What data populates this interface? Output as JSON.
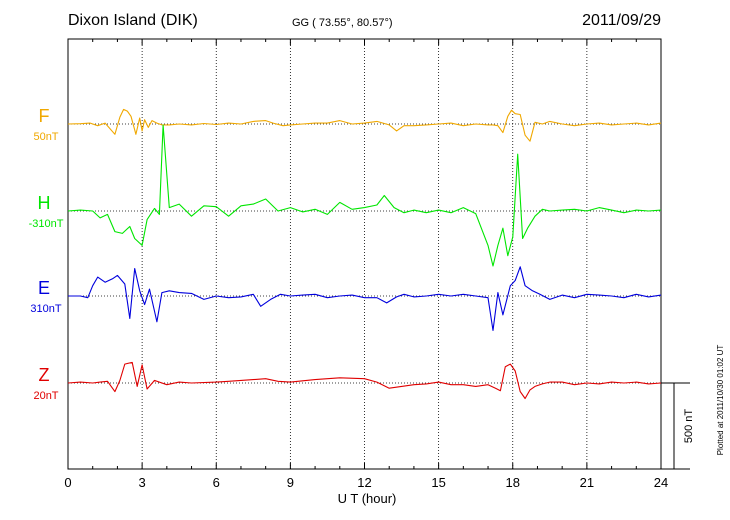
{
  "header": {
    "station": "Dixon Island (DIK)",
    "coords": "GG ( 73.55°,  80.57°)",
    "date": "2011/09/29"
  },
  "footer": {
    "plotted": "Plotted at 2011/10/30 01:02 UT"
  },
  "chart_data": {
    "type": "line",
    "title": "Dixon Island (DIK)",
    "xlabel": "U T (hour)",
    "xlim": [
      0,
      24
    ],
    "xticks": [
      "0",
      "3",
      "6",
      "9",
      "12",
      "15",
      "18",
      "21",
      "24"
    ],
    "grid": true,
    "scale_bar": {
      "label": "500 nT",
      "value_nT": 500
    },
    "series": [
      {
        "name": "F",
        "baseline_label": "50nT",
        "baseline_nT": 50,
        "color": "#f0a800",
        "x": [
          0,
          0.5,
          0.9,
          1.2,
          1.5,
          1.9,
          2.1,
          2.25,
          2.4,
          2.55,
          2.75,
          2.9,
          3.0,
          3.1,
          3.25,
          3.4,
          3.6,
          3.8,
          4.1,
          4.5,
          5.0,
          5.5,
          6.0,
          6.5,
          7.0,
          7.5,
          8.0,
          8.3,
          8.7,
          9.0,
          9.5,
          10.0,
          10.5,
          11.0,
          11.5,
          12.0,
          12.5,
          13.0,
          13.3,
          13.6,
          14.0,
          14.5,
          15.0,
          15.5,
          16.0,
          16.5,
          17.0,
          17.2,
          17.4,
          17.6,
          17.8,
          17.95,
          18.1,
          18.3,
          18.5,
          18.7,
          18.9,
          19.2,
          19.5,
          20.0,
          20.5,
          21.0,
          21.5,
          22.0,
          22.5,
          23.0,
          23.5,
          24.0
        ],
        "y": [
          0,
          2,
          5,
          -10,
          5,
          -60,
          40,
          85,
          75,
          45,
          -60,
          35,
          -40,
          25,
          -20,
          20,
          5,
          -5,
          -5,
          0,
          -5,
          3,
          -3,
          5,
          0,
          15,
          20,
          5,
          -10,
          -5,
          0,
          5,
          5,
          20,
          0,
          5,
          15,
          -5,
          -40,
          -10,
          -10,
          -5,
          0,
          5,
          -10,
          0,
          -5,
          -5,
          -10,
          -50,
          45,
          80,
          60,
          55,
          -65,
          -100,
          10,
          0,
          15,
          0,
          -10,
          0,
          5,
          -5,
          0,
          5,
          -5,
          5
        ]
      },
      {
        "name": "H",
        "baseline_label": "-310nT",
        "baseline_nT": -310,
        "color": "#00e600",
        "x": [
          0,
          0.5,
          1.0,
          1.3,
          1.6,
          1.9,
          2.2,
          2.5,
          2.7,
          3.0,
          3.2,
          3.5,
          3.7,
          3.85,
          4.1,
          4.5,
          5.0,
          5.5,
          6.0,
          6.5,
          7.0,
          7.5,
          8.0,
          8.5,
          9.0,
          9.5,
          10.0,
          10.5,
          11.0,
          11.5,
          12.0,
          12.5,
          12.8,
          13.2,
          13.6,
          14.0,
          14.5,
          15.0,
          15.5,
          16.0,
          16.5,
          17.0,
          17.2,
          17.4,
          17.6,
          17.8,
          18.0,
          18.2,
          18.4,
          18.6,
          18.9,
          19.2,
          19.5,
          20.0,
          20.5,
          21.0,
          21.5,
          22.0,
          22.5,
          23.0,
          23.5,
          24.0
        ],
        "y": [
          0,
          5,
          0,
          -40,
          -20,
          -120,
          -130,
          -90,
          -160,
          -200,
          -50,
          15,
          -20,
          500,
          20,
          40,
          -30,
          30,
          25,
          -30,
          30,
          40,
          70,
          0,
          20,
          -5,
          10,
          -20,
          50,
          10,
          20,
          35,
          90,
          20,
          -10,
          5,
          -10,
          5,
          -10,
          20,
          -15,
          -200,
          -320,
          -200,
          -100,
          -260,
          -150,
          330,
          -160,
          -100,
          -30,
          10,
          0,
          5,
          10,
          0,
          20,
          5,
          -10,
          5,
          0,
          5
        ]
      },
      {
        "name": "E",
        "baseline_label": "310nT",
        "baseline_nT": 310,
        "color": "#0000dd",
        "x": [
          0,
          0.5,
          0.8,
          1.0,
          1.2,
          1.5,
          1.8,
          2.0,
          2.3,
          2.5,
          2.7,
          2.9,
          3.1,
          3.3,
          3.6,
          3.8,
          4.1,
          4.5,
          5.0,
          5.5,
          6.0,
          6.5,
          7.0,
          7.5,
          7.8,
          8.2,
          8.6,
          9.0,
          9.5,
          10.0,
          10.5,
          11.0,
          11.5,
          12.0,
          12.5,
          12.9,
          13.3,
          13.6,
          14.0,
          14.5,
          15.0,
          15.5,
          16.0,
          16.5,
          17.0,
          17.2,
          17.4,
          17.6,
          17.9,
          18.1,
          18.3,
          18.5,
          18.8,
          19.1,
          19.5,
          20.0,
          20.5,
          21.0,
          21.5,
          22.0,
          22.5,
          23.0,
          23.5,
          24.0
        ],
        "y": [
          0,
          0,
          -10,
          60,
          110,
          80,
          100,
          120,
          70,
          -130,
          160,
          30,
          -50,
          40,
          -150,
          20,
          30,
          20,
          15,
          -20,
          0,
          -10,
          -5,
          10,
          -60,
          -20,
          10,
          0,
          5,
          10,
          -10,
          0,
          5,
          -10,
          -10,
          -40,
          -5,
          10,
          -5,
          0,
          10,
          0,
          10,
          0,
          -10,
          -200,
          20,
          -110,
          60,
          90,
          170,
          60,
          30,
          10,
          -20,
          5,
          -10,
          10,
          5,
          0,
          -10,
          10,
          -5,
          5
        ]
      },
      {
        "name": "Z",
        "baseline_label": "20nT",
        "baseline_nT": 20,
        "color": "#e00000",
        "x": [
          0,
          0.5,
          1.0,
          1.3,
          1.6,
          1.9,
          2.1,
          2.3,
          2.6,
          2.8,
          3.0,
          3.2,
          3.5,
          4.0,
          4.5,
          5.0,
          6.0,
          6.5,
          7.0,
          7.5,
          8.0,
          8.5,
          9.0,
          10.0,
          11.0,
          12.0,
          12.5,
          13.0,
          13.5,
          14.0,
          14.5,
          15.0,
          15.5,
          16.0,
          16.5,
          17.0,
          17.3,
          17.5,
          17.7,
          17.9,
          18.1,
          18.3,
          18.5,
          18.7,
          18.9,
          19.2,
          19.5,
          20.0,
          20.5,
          21.0,
          21.5,
          22.0,
          22.5,
          23.0,
          23.5,
          24.0
        ],
        "y": [
          0,
          5,
          0,
          5,
          10,
          -50,
          15,
          110,
          120,
          -20,
          105,
          -35,
          15,
          -10,
          5,
          0,
          5,
          10,
          15,
          20,
          25,
          10,
          5,
          20,
          30,
          25,
          5,
          -30,
          -20,
          -10,
          -5,
          5,
          -10,
          -10,
          -20,
          -10,
          -30,
          -45,
          95,
          110,
          70,
          -50,
          -90,
          -40,
          -20,
          -5,
          5,
          5,
          -10,
          0,
          -5,
          5,
          0,
          5,
          -5,
          0
        ]
      }
    ]
  }
}
